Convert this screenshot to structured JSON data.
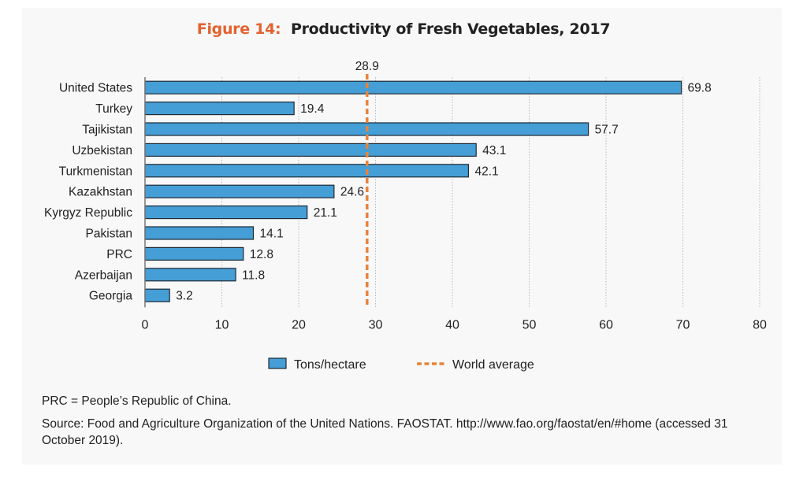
{
  "title": {
    "prefix": "Figure 14:",
    "text": "Productivity of Fresh Vegetables, 2017",
    "prefix_color": "#e2622f"
  },
  "chart_data": {
    "type": "bar",
    "orientation": "horizontal",
    "title": "Figure 14: Productivity of Fresh Vegetables, 2017",
    "categories": [
      "United States",
      "Turkey",
      "Tajikistan",
      "Uzbekistan",
      "Turkmenistan",
      "Kazakhstan",
      "Kyrgyz Republic",
      "Pakistan",
      "PRC",
      "Azerbaijan",
      "Georgia"
    ],
    "series": [
      {
        "name": "Tons/hectare",
        "color": "#459ed5",
        "values": [
          69.8,
          19.4,
          57.7,
          43.1,
          42.1,
          24.6,
          21.1,
          14.1,
          12.8,
          11.8,
          3.2
        ]
      }
    ],
    "data_labels": [
      "69.8",
      "19.4",
      "57.7",
      "43.1",
      "42.1",
      "24.6",
      "21.1",
      "14.1",
      "12.8",
      "11.8",
      "3.2"
    ],
    "reference_line": {
      "name": "World average",
      "value": 28.9,
      "label": "28.9",
      "color": "#e8833a",
      "style": "dashed"
    },
    "xlim": [
      0,
      80
    ],
    "xticks": [
      0,
      10,
      20,
      30,
      40,
      50,
      60,
      70,
      80
    ],
    "xlabel": "",
    "ylabel": "",
    "grid": "vertical dotted",
    "legend": {
      "placement": "bottom-center",
      "entries": [
        {
          "label": "Tons/hectare",
          "type": "bar",
          "color": "#459ed5"
        },
        {
          "label": "World average",
          "type": "dashed-line",
          "color": "#e8833a"
        }
      ]
    }
  },
  "notes": {
    "abbreviation": "PRC = People’s Republic of China.",
    "source": "Source: Food and Agriculture Organization of the United Nations. FAOSTAT. http://www.fao.org/faostat/en/#home (accessed 31 October 2019)."
  }
}
